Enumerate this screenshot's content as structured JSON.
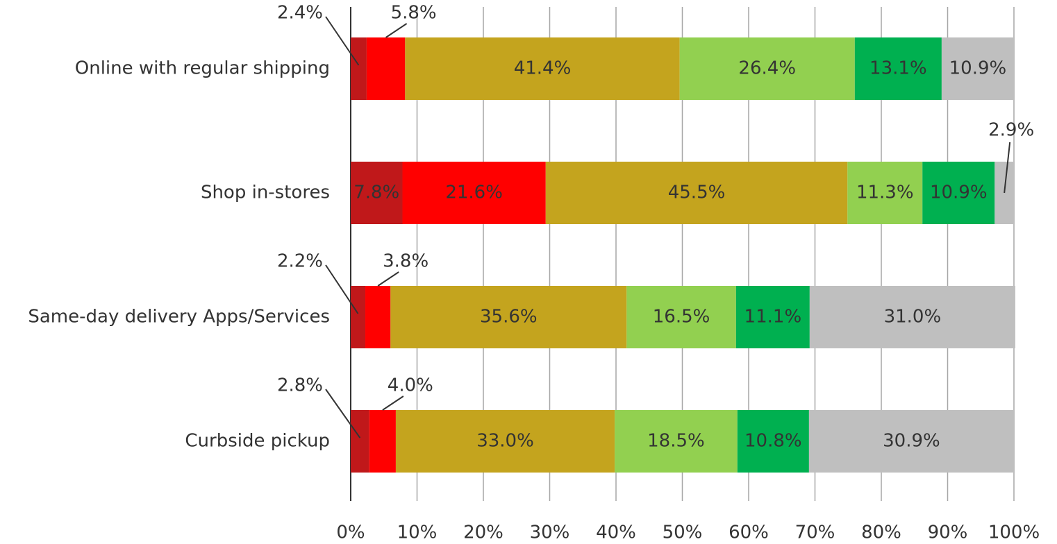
{
  "chart_data": {
    "type": "stacked-bar-horizontal",
    "categories": [
      "Online with regular shipping",
      "Shop in-stores",
      "Same-day delivery Apps/Services",
      "Curbside pickup"
    ],
    "series": [
      {
        "color": "#c0181a",
        "values": [
          2.4,
          7.8,
          2.2,
          2.8
        ],
        "value_labels": [
          "2.4%",
          "7.8%",
          "2.2%",
          "2.8%"
        ]
      },
      {
        "color": "#ff0000",
        "values": [
          5.8,
          21.6,
          3.8,
          4.0
        ],
        "value_labels": [
          "5.8%",
          "21.6%",
          "3.8%",
          "4.0%"
        ]
      },
      {
        "color": "#c4a41e",
        "values": [
          41.4,
          45.5,
          35.6,
          33.0
        ],
        "value_labels": [
          "41.4%",
          "45.5%",
          "35.6%",
          "33.0%"
        ]
      },
      {
        "color": "#92d050",
        "values": [
          26.4,
          11.3,
          16.5,
          18.5
        ],
        "value_labels": [
          "26.4%",
          "11.3%",
          "16.5%",
          "18.5%"
        ]
      },
      {
        "color": "#00b050",
        "values": [
          13.1,
          10.9,
          11.1,
          10.8
        ],
        "value_labels": [
          "13.1%",
          "10.9%",
          "11.1%",
          "10.8%"
        ]
      },
      {
        "color": "#bfbfbf",
        "values": [
          10.9,
          2.9,
          31.0,
          30.9
        ],
        "value_labels": [
          "10.9%",
          "2.9%",
          "31.0%",
          "30.9%"
        ]
      }
    ],
    "xlim": [
      0,
      100
    ],
    "xticks": [
      {
        "value": 0,
        "label": "0%"
      },
      {
        "value": 10,
        "label": "10%"
      },
      {
        "value": 20,
        "label": "20%"
      },
      {
        "value": 30,
        "label": "30%"
      },
      {
        "value": 40,
        "label": "40%"
      },
      {
        "value": 50,
        "label": "50%"
      },
      {
        "value": 60,
        "label": "60%"
      },
      {
        "value": 70,
        "label": "70%"
      },
      {
        "value": 80,
        "label": "80%"
      },
      {
        "value": 90,
        "label": "90%"
      },
      {
        "value": 100,
        "label": "100%"
      }
    ],
    "grid": true
  }
}
